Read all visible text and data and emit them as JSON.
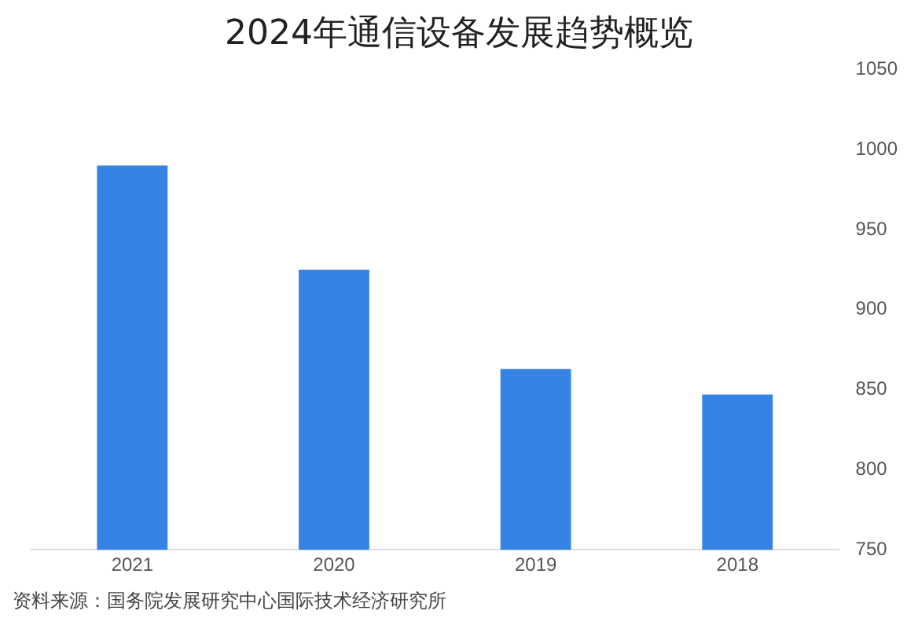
{
  "chart_data": {
    "type": "bar",
    "title": "2024年通信设备发展趋势概览",
    "categories": [
      "2021",
      "2020",
      "2019",
      "2018"
    ],
    "values": [
      990,
      925,
      863,
      847
    ],
    "color": "#3583e4",
    "ylim": [
      750,
      1050
    ],
    "yticks": [
      750,
      800,
      850,
      900,
      950,
      1000,
      1050
    ],
    "grid": false,
    "annotations": [
      "资料来源：国务院发展研究中心国际技术经济研究所"
    ]
  }
}
